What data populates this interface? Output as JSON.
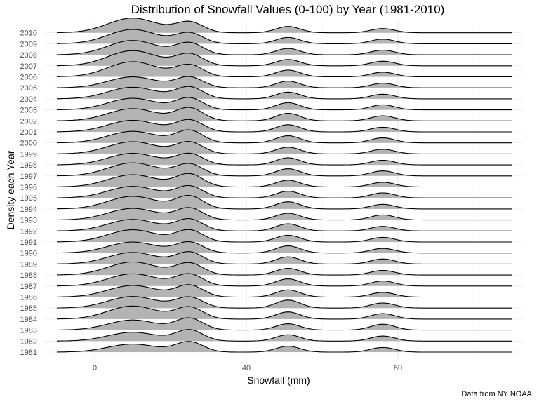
{
  "chart_data": {
    "type": "ridgeline",
    "title": "Distribution of Snowfall Values (0-100) by Year (1981-2010)",
    "xlabel": "Snowfall (mm)",
    "ylabel": "Density each Year",
    "caption": "Data from NY NOAA",
    "xlim": [
      -10,
      110
    ],
    "x_ticks": [
      0,
      40,
      80
    ],
    "categories": [
      "1981",
      "1982",
      "1983",
      "1984",
      "1985",
      "1986",
      "1987",
      "1988",
      "1989",
      "1990",
      "1991",
      "1992",
      "1993",
      "1994",
      "1995",
      "1996",
      "1997",
      "1998",
      "1999",
      "2000",
      "2001",
      "2002",
      "2003",
      "2004",
      "2005",
      "2006",
      "2007",
      "2008",
      "2009",
      "2010"
    ],
    "grid": true,
    "fill_color": "#b3b3b3",
    "line_color": "#000000",
    "density_peaks_x": [
      10,
      25,
      51,
      76
    ],
    "series": [
      {
        "name": "1981",
        "peak_heights": [
          0.38,
          0.48,
          0.28,
          0.22
        ]
      },
      {
        "name": "1982",
        "peak_heights": [
          0.42,
          0.52,
          0.3,
          0.24
        ]
      },
      {
        "name": "1983",
        "peak_heights": [
          0.48,
          0.55,
          0.3,
          0.28
        ]
      },
      {
        "name": "1984",
        "peak_heights": [
          0.62,
          0.55,
          0.34,
          0.26
        ]
      },
      {
        "name": "1985",
        "peak_heights": [
          0.55,
          0.5,
          0.38,
          0.24
        ]
      },
      {
        "name": "1986",
        "peak_heights": [
          0.55,
          0.55,
          0.34,
          0.22
        ]
      },
      {
        "name": "1987",
        "peak_heights": [
          0.58,
          0.55,
          0.34,
          0.24
        ]
      },
      {
        "name": "1988",
        "peak_heights": [
          0.62,
          0.55,
          0.32,
          0.22
        ]
      },
      {
        "name": "1989",
        "peak_heights": [
          0.55,
          0.55,
          0.34,
          0.24
        ]
      },
      {
        "name": "1990",
        "peak_heights": [
          0.52,
          0.5,
          0.34,
          0.22
        ]
      },
      {
        "name": "1991",
        "peak_heights": [
          0.58,
          0.55,
          0.32,
          0.22
        ]
      },
      {
        "name": "1992",
        "peak_heights": [
          0.55,
          0.55,
          0.34,
          0.22
        ]
      },
      {
        "name": "1993",
        "peak_heights": [
          0.55,
          0.55,
          0.32,
          0.24
        ]
      },
      {
        "name": "1994",
        "peak_heights": [
          0.6,
          0.6,
          0.34,
          0.22
        ]
      },
      {
        "name": "1995",
        "peak_heights": [
          0.55,
          0.55,
          0.32,
          0.24
        ]
      },
      {
        "name": "1996",
        "peak_heights": [
          0.58,
          0.6,
          0.32,
          0.22
        ]
      },
      {
        "name": "1997",
        "peak_heights": [
          0.62,
          0.55,
          0.34,
          0.24
        ]
      },
      {
        "name": "1998",
        "peak_heights": [
          0.55,
          0.52,
          0.34,
          0.22
        ]
      },
      {
        "name": "1999",
        "peak_heights": [
          0.58,
          0.55,
          0.32,
          0.22
        ]
      },
      {
        "name": "2000",
        "peak_heights": [
          0.55,
          0.58,
          0.34,
          0.24
        ]
      },
      {
        "name": "2001",
        "peak_heights": [
          0.55,
          0.55,
          0.34,
          0.22
        ]
      },
      {
        "name": "2002",
        "peak_heights": [
          0.58,
          0.6,
          0.36,
          0.24
        ]
      },
      {
        "name": "2003",
        "peak_heights": [
          0.55,
          0.55,
          0.34,
          0.24
        ]
      },
      {
        "name": "2004",
        "peak_heights": [
          0.55,
          0.55,
          0.32,
          0.22
        ]
      },
      {
        "name": "2005",
        "peak_heights": [
          0.52,
          0.5,
          0.32,
          0.22
        ]
      },
      {
        "name": "2006",
        "peak_heights": [
          0.72,
          0.55,
          0.32,
          0.22
        ]
      },
      {
        "name": "2007",
        "peak_heights": [
          0.72,
          0.55,
          0.3,
          0.22
        ]
      },
      {
        "name": "2008",
        "peak_heights": [
          0.68,
          0.55,
          0.3,
          0.22
        ]
      },
      {
        "name": "2009",
        "peak_heights": [
          0.68,
          0.5,
          0.3,
          0.22
        ]
      },
      {
        "name": "2010",
        "peak_heights": [
          0.7,
          0.5,
          0.3,
          0.2
        ]
      }
    ]
  }
}
